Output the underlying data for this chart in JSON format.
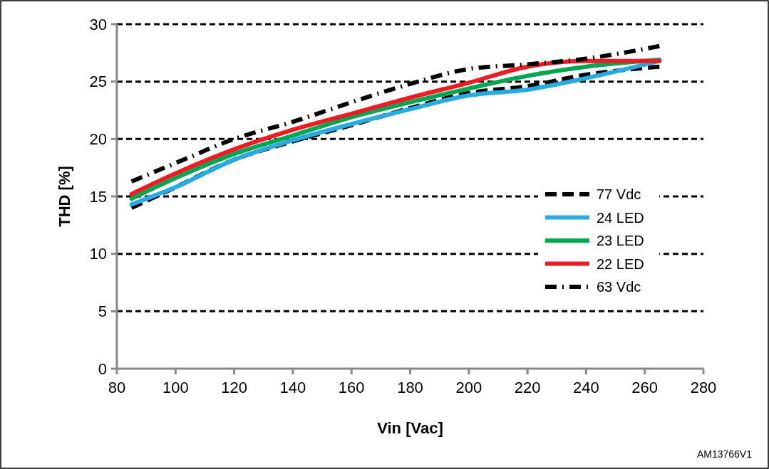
{
  "chart_data": {
    "type": "line",
    "xlabel": "Vin [Vac]",
    "ylabel": "THD [%]",
    "annotations": [
      "AM13766V1"
    ],
    "x": [
      85,
      100,
      120,
      140,
      160,
      180,
      200,
      220,
      240,
      265
    ],
    "xlim": [
      80,
      280
    ],
    "xticks": [
      80,
      100,
      120,
      140,
      160,
      180,
      200,
      220,
      240,
      260,
      280
    ],
    "ylim": [
      0,
      30
    ],
    "yticks": [
      0,
      5,
      10,
      15,
      20,
      25,
      30
    ],
    "grid": "y",
    "legend": "right",
    "marker": "none",
    "series": [
      {
        "name": "77 Vdc",
        "color": "#000000",
        "line_style": "dashed",
        "values": [
          14.0,
          15.8,
          18.2,
          19.8,
          21.2,
          22.7,
          24.0,
          24.6,
          25.6,
          26.3
        ]
      },
      {
        "name": "24 LED",
        "color": "#29abe2",
        "line_style": "solid",
        "values": [
          14.3,
          15.8,
          18.2,
          19.9,
          21.3,
          22.6,
          23.8,
          24.3,
          25.3,
          26.8
        ]
      },
      {
        "name": "23 LED",
        "color": "#00a651",
        "line_style": "solid",
        "values": [
          14.8,
          16.6,
          18.7,
          20.3,
          21.9,
          23.2,
          24.4,
          25.5,
          26.3,
          26.9
        ]
      },
      {
        "name": "22 LED",
        "color": "#ed1c24",
        "line_style": "solid",
        "values": [
          15.2,
          17.0,
          19.1,
          20.8,
          22.2,
          23.6,
          24.9,
          26.3,
          26.8,
          26.8
        ]
      },
      {
        "name": "63 Vdc",
        "color": "#000000",
        "line_style": "dashdot",
        "values": [
          16.3,
          17.9,
          20.0,
          21.5,
          23.2,
          24.8,
          26.1,
          26.5,
          27.0,
          28.1
        ]
      }
    ]
  }
}
